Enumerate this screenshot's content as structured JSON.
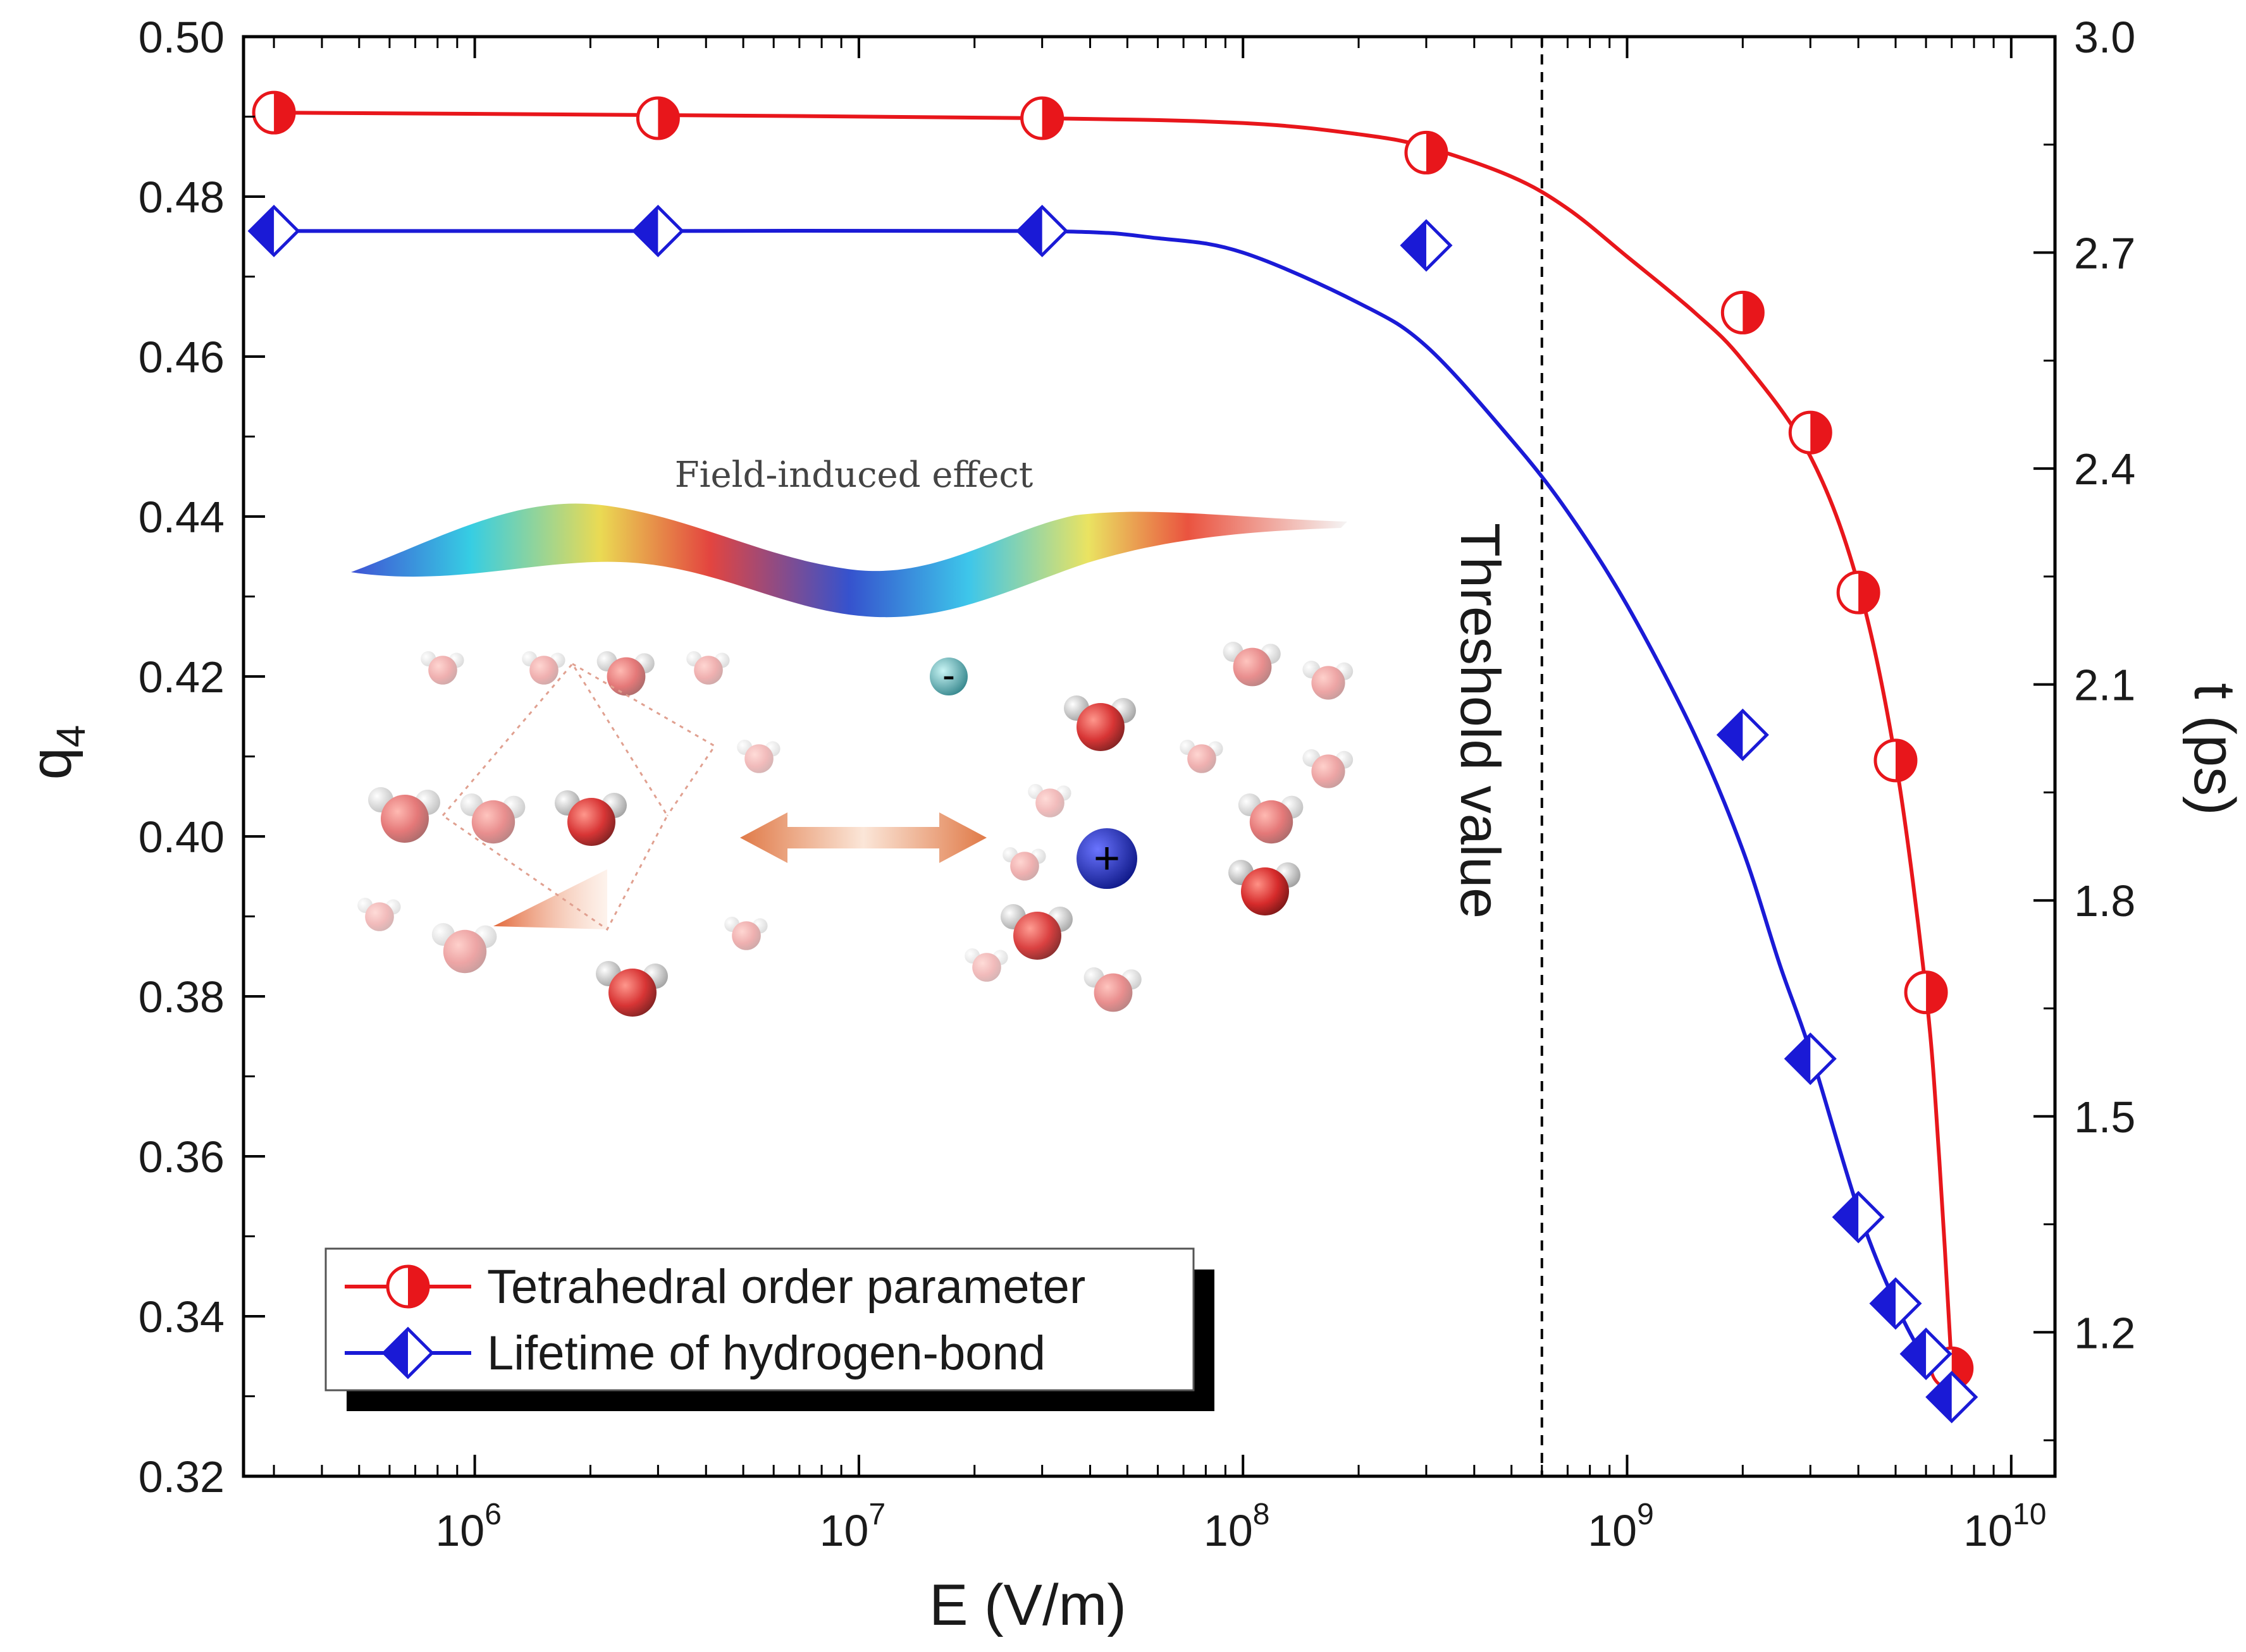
{
  "chart_data": {
    "type": "line",
    "title": "",
    "xlabel": "E (V/m)",
    "ylabel_left": "q",
    "ylabel_left_subscript": "4",
    "ylabel_right": "t (ps)",
    "x_scale": "log",
    "xlim": [
      250000,
      13000000000
    ],
    "ylim_left": [
      0.32,
      0.5
    ],
    "ylim_right": [
      1.0,
      3.0
    ],
    "x_ticks": [
      {
        "value": 1000000,
        "base": "10",
        "exp": "6"
      },
      {
        "value": 10000000,
        "base": "10",
        "exp": "7"
      },
      {
        "value": 100000000,
        "base": "10",
        "exp": "8"
      },
      {
        "value": 1000000000,
        "base": "10",
        "exp": "9"
      },
      {
        "value": 10000000000,
        "base": "10",
        "exp": "10"
      }
    ],
    "y_left_ticks": [
      "0.32",
      "0.34",
      "0.36",
      "0.38",
      "0.40",
      "0.42",
      "0.44",
      "0.46",
      "0.48",
      "0.50"
    ],
    "y_right_ticks": [
      "1.2",
      "1.5",
      "1.8",
      "2.1",
      "2.4",
      "2.7",
      "3.0"
    ],
    "series": [
      {
        "name": "Tetrahedral order parameter",
        "axis": "left",
        "color": "#e8161b",
        "marker": "half-filled-circle",
        "x": [
          300000,
          3000000,
          30000000,
          300000000,
          2000000000,
          3000000000,
          4000000000,
          5000000000,
          6000000000,
          7000000000
        ],
        "y": [
          0.4905,
          0.4898,
          0.4898,
          0.4855,
          0.4655,
          0.4505,
          0.4305,
          0.4095,
          0.3805,
          0.3335
        ]
      },
      {
        "name": "Lifetime of hydrogen-bond",
        "axis": "right",
        "color": "#1a1ad6",
        "marker": "half-filled-diamond",
        "x": [
          300000,
          3000000,
          30000000,
          300000000,
          2000000000,
          3000000000,
          4000000000,
          5000000000,
          6000000000,
          7000000000
        ],
        "y": [
          2.73,
          2.73,
          2.73,
          2.71,
          2.03,
          1.58,
          1.36,
          1.24,
          1.17,
          1.11
        ]
      }
    ],
    "fit_curves": [
      {
        "series": "Tetrahedral order parameter",
        "axis": "left",
        "color": "#e8161b",
        "x": [
          300000,
          3000000,
          30000000,
          100000000,
          200000000,
          300000000,
          500000000,
          700000000,
          1000000000,
          1500000000,
          2000000000,
          3000000000,
          4000000000,
          5000000000,
          6000000000,
          6500000000,
          7000000000
        ],
        "y": [
          0.4905,
          0.4902,
          0.4898,
          0.4892,
          0.4878,
          0.4862,
          0.4825,
          0.4785,
          0.4725,
          0.4655,
          0.4595,
          0.4475,
          0.4315,
          0.4095,
          0.3805,
          0.3595,
          0.3335
        ]
      },
      {
        "series": "Lifetime of hydrogen-bond",
        "axis": "right",
        "color": "#1a1ad6",
        "x": [
          300000,
          3000000,
          30000000,
          60000000,
          100000000,
          200000000,
          300000000,
          500000000,
          700000000,
          1000000000,
          1500000000,
          2000000000,
          2500000000,
          3000000000,
          4000000000,
          5000000000,
          6000000000,
          7000000000
        ],
        "y": [
          2.73,
          2.73,
          2.73,
          2.72,
          2.7,
          2.63,
          2.57,
          2.44,
          2.34,
          2.21,
          2.03,
          1.87,
          1.71,
          1.59,
          1.37,
          1.24,
          1.16,
          1.11
        ]
      }
    ],
    "threshold": {
      "x": 600000000,
      "label": "Threshold value"
    },
    "legend": {
      "position": "bottom-left",
      "entries": [
        "Tetrahedral order parameter",
        "Lifetime of hydrogen-bond"
      ]
    },
    "inset": {
      "title": "Field-induced effect",
      "anion_symbol": "-",
      "cation_symbol": "+"
    }
  }
}
